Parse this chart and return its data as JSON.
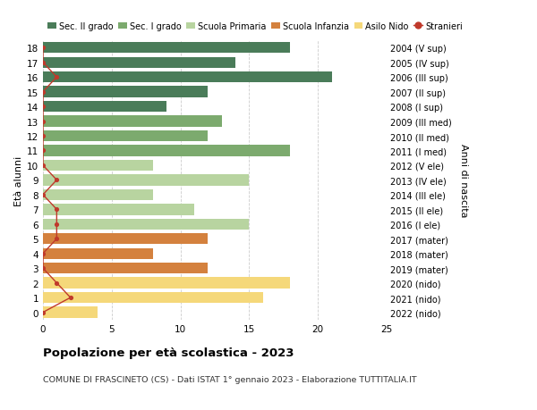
{
  "ages": [
    18,
    17,
    16,
    15,
    14,
    13,
    12,
    11,
    10,
    9,
    8,
    7,
    6,
    5,
    4,
    3,
    2,
    1,
    0
  ],
  "years": [
    "2004 (V sup)",
    "2005 (IV sup)",
    "2006 (III sup)",
    "2007 (II sup)",
    "2008 (I sup)",
    "2009 (III med)",
    "2010 (II med)",
    "2011 (I med)",
    "2012 (V ele)",
    "2013 (IV ele)",
    "2014 (III ele)",
    "2015 (II ele)",
    "2016 (I ele)",
    "2017 (mater)",
    "2018 (mater)",
    "2019 (mater)",
    "2020 (nido)",
    "2021 (nido)",
    "2022 (nido)"
  ],
  "values": [
    18,
    14,
    21,
    12,
    9,
    13,
    12,
    18,
    8,
    15,
    8,
    11,
    15,
    12,
    8,
    12,
    18,
    16,
    4
  ],
  "stranieri": [
    0,
    0,
    1,
    0,
    0,
    0,
    0,
    0,
    0,
    1,
    0,
    1,
    1,
    1,
    0,
    0,
    1,
    2,
    0
  ],
  "colors": [
    "#4a7c59",
    "#4a7c59",
    "#4a7c59",
    "#4a7c59",
    "#4a7c59",
    "#7caa6e",
    "#7caa6e",
    "#7caa6e",
    "#b8d4a0",
    "#b8d4a0",
    "#b8d4a0",
    "#b8d4a0",
    "#b8d4a0",
    "#d4813e",
    "#d4813e",
    "#d4813e",
    "#f5d87a",
    "#f5d87a",
    "#f5d87a"
  ],
  "legend_labels": [
    "Sec. II grado",
    "Sec. I grado",
    "Scuola Primaria",
    "Scuola Infanzia",
    "Asilo Nido",
    "Stranieri"
  ],
  "legend_colors": [
    "#4a7c59",
    "#7caa6e",
    "#b8d4a0",
    "#d4813e",
    "#f5d87a",
    "#c0392b"
  ],
  "title": "Popolazione per età scolastica - 2023",
  "subtitle": "COMUNE DI FRASCINETO (CS) - Dati ISTAT 1° gennaio 2023 - Elaborazione TUTTITALIA.IT",
  "ylabel_left": "Età alunni",
  "ylabel_right": "Anni di nascita",
  "xlim": [
    0,
    25
  ],
  "stranieri_color": "#c0392b",
  "background_color": "#ffffff",
  "grid_color": "#cccccc"
}
